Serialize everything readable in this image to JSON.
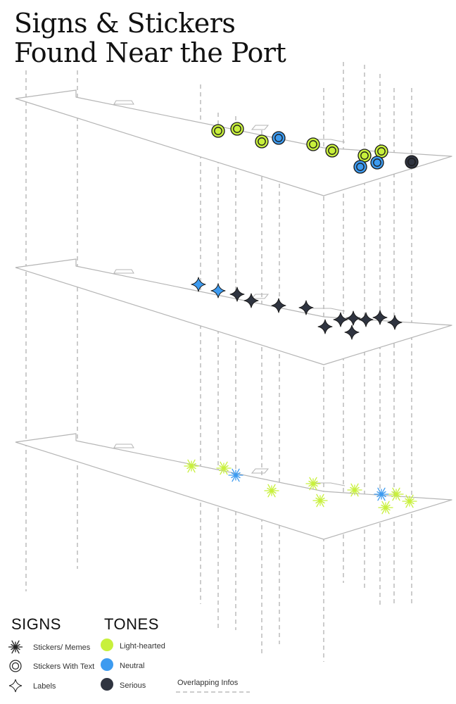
{
  "title": {
    "line1": "Signs & Stickers",
    "line2": "Found Near the Port"
  },
  "legend": {
    "signs_heading": "SIGNS",
    "tones_heading": "TONES",
    "signs": [
      {
        "label": "Stickers/ Memes",
        "icon": "burst-icon"
      },
      {
        "label": "Stickers With Text",
        "icon": "double-circle-icon"
      },
      {
        "label": "Labels",
        "icon": "four-point-star-icon"
      }
    ],
    "tones": [
      {
        "label": "Light-hearted",
        "color": "#c8f03c"
      },
      {
        "label": "Neutral",
        "color": "#3d9bf0"
      },
      {
        "label": "Serious",
        "color": "#2f3440"
      }
    ],
    "overlap_label": "Overlapping Infos"
  },
  "colors": {
    "light_hearted": "#c8f03c",
    "neutral": "#3d9bf0",
    "serious": "#2f3440",
    "outline": "#1a1a1a",
    "map_stroke": "#b5b5b5",
    "guide": "#9a9a9a"
  },
  "layers": [
    {
      "sign": "Stickers With Text",
      "icon": "double-circle-icon",
      "markers": [
        {
          "tone": "Light-hearted"
        },
        {
          "tone": "Light-hearted"
        },
        {
          "tone": "Light-hearted"
        },
        {
          "tone": "Neutral"
        },
        {
          "tone": "Light-hearted"
        },
        {
          "tone": "Light-hearted"
        },
        {
          "tone": "Light-hearted"
        },
        {
          "tone": "Light-hearted"
        },
        {
          "tone": "Neutral"
        },
        {
          "tone": "Neutral"
        },
        {
          "tone": "Serious"
        }
      ]
    },
    {
      "sign": "Labels",
      "icon": "four-point-star-icon",
      "markers": [
        {
          "tone": "Neutral"
        },
        {
          "tone": "Neutral"
        },
        {
          "tone": "Serious"
        },
        {
          "tone": "Serious"
        },
        {
          "tone": "Serious"
        },
        {
          "tone": "Serious"
        },
        {
          "tone": "Serious"
        },
        {
          "tone": "Serious"
        },
        {
          "tone": "Serious"
        },
        {
          "tone": "Serious"
        },
        {
          "tone": "Serious"
        },
        {
          "tone": "Serious"
        },
        {
          "tone": "Serious"
        }
      ]
    },
    {
      "sign": "Stickers/ Memes",
      "icon": "burst-icon",
      "markers": [
        {
          "tone": "Light-hearted"
        },
        {
          "tone": "Light-hearted"
        },
        {
          "tone": "Neutral"
        },
        {
          "tone": "Light-hearted"
        },
        {
          "tone": "Light-hearted"
        },
        {
          "tone": "Light-hearted"
        },
        {
          "tone": "Light-hearted"
        },
        {
          "tone": "Neutral"
        },
        {
          "tone": "Light-hearted"
        },
        {
          "tone": "Light-hearted"
        },
        {
          "tone": "Light-hearted"
        }
      ]
    }
  ]
}
